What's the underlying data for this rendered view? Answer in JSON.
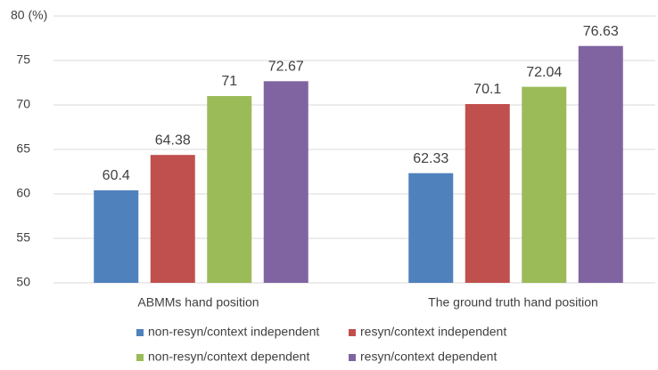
{
  "chart_data": {
    "type": "bar",
    "categories": [
      "ABMMs hand position",
      "The ground truth hand position"
    ],
    "series": [
      {
        "name": "non-resyn/context independent",
        "color": "#4f81bd",
        "values": [
          60.4,
          62.33
        ]
      },
      {
        "name": "resyn/context independent",
        "color": "#c0504d",
        "values": [
          64.38,
          70.1
        ]
      },
      {
        "name": "non-resyn/context dependent",
        "color": "#9bbb59",
        "values": [
          71,
          72.04
        ]
      },
      {
        "name": "resyn/context dependent",
        "color": "#8064a2",
        "values": [
          72.67,
          76.63
        ]
      }
    ],
    "ylim": [
      50,
      80
    ],
    "yticks": [
      50,
      55,
      60,
      65,
      70,
      75,
      {
        "value": 80,
        "label": "80 (%)"
      }
    ],
    "grid": true,
    "legend": "bottom"
  }
}
